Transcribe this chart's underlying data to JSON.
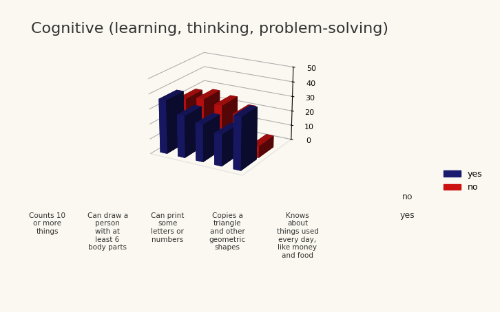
{
  "title": "Cognitive (learning, thinking, problem-solving)",
  "categories": [
    "Counts 10\nor more\nthings",
    "Can draw a\nperson\nwith at\nleast 6\nbody parts",
    "Can print\nsome\nletters or\nnumbers",
    "Copies a\ntriangle\nand other\ngeometric\nshapes",
    "Knows\nabout\nthings used\nevery day,\nlike money\nand food"
  ],
  "yes_values": [
    36,
    28,
    25,
    21,
    35
  ],
  "no_values": [
    30,
    32,
    30,
    26,
    8
  ],
  "yes_color": "#1a1a6e",
  "no_color": "#cc1111",
  "background_color": "#faf8f0",
  "ylim": [
    0,
    50
  ],
  "yticks": [
    0,
    10,
    20,
    30,
    40,
    50
  ],
  "bar_width": 0.4,
  "bar_depth": 0.4,
  "legend_yes": "yes",
  "legend_no": "no",
  "title_fontsize": 16
}
